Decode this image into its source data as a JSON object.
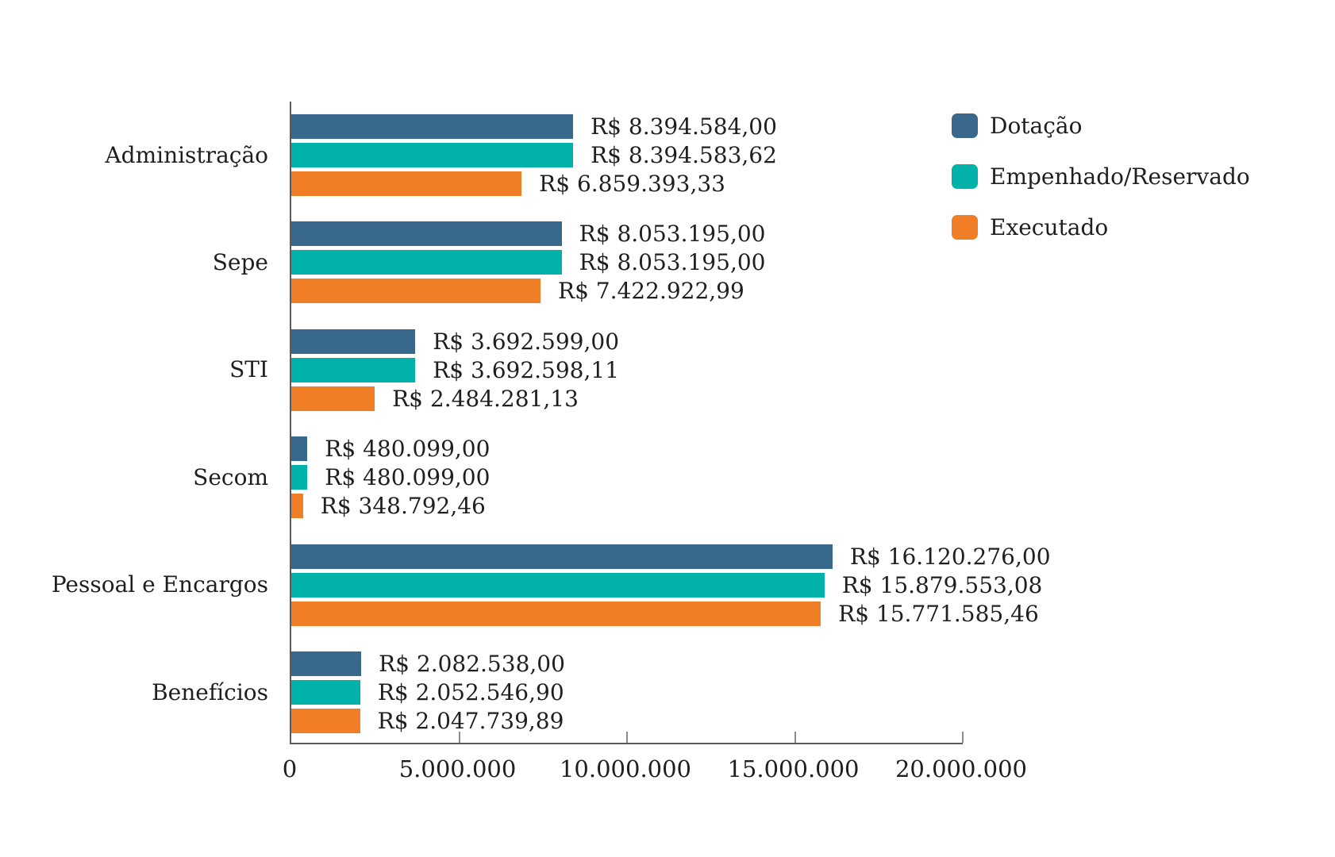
{
  "chart_data": {
    "type": "bar",
    "orientation": "horizontal",
    "title": "",
    "currency_prefix": "R$",
    "categories": [
      "Administração",
      "Sepe",
      "STI",
      "Secom",
      "Pessoal e Encargos",
      "Benefícios"
    ],
    "series": [
      {
        "name": "Dotação",
        "color": "#38698C",
        "values": [
          8394584.0,
          8053195.0,
          3692599.0,
          480099.0,
          16120276.0,
          2082538.0
        ],
        "labels": [
          "R$ 8.394.584,00",
          "R$ 8.053.195,00",
          "R$ 3.692.599,00",
          "R$ 480.099,00",
          "R$ 16.120.276,00",
          "R$ 2.082.538,00"
        ]
      },
      {
        "name": "Empenhado/Reservado",
        "color": "#00B2AA",
        "values": [
          8394583.62,
          8053195.0,
          3692598.11,
          480099.0,
          15879553.08,
          2052546.9
        ],
        "labels": [
          "R$ 8.394.583,62",
          "R$ 8.053.195,00",
          "R$ 3.692.598,11",
          "R$ 480.099,00",
          "R$ 15.879.553,08",
          "R$ 2.052.546,90"
        ]
      },
      {
        "name": "Executado",
        "color": "#F07E26",
        "values": [
          6859393.33,
          7422922.99,
          2484281.13,
          348792.46,
          15771585.46,
          2047739.89
        ],
        "labels": [
          "R$ 6.859.393,33",
          "R$ 7.422.922,99",
          "R$ 2.484.281,13",
          "R$ 348.792,46",
          "R$ 15.771.585,46",
          "R$ 2.047.739,89"
        ]
      }
    ],
    "x_axis": {
      "min": 0,
      "max": 20000000,
      "ticks": [
        0,
        5000000,
        10000000,
        15000000,
        20000000
      ],
      "tick_labels": [
        "0",
        "5.000.000",
        "10.000.000",
        "15.000.000",
        "20.000.000"
      ]
    },
    "legend_position": "top-right",
    "grid": false,
    "colors": {
      "text": "#1f1f1f",
      "axis_line": "#595959",
      "tick_mark": "#8c8c8c",
      "background": "#ffffff"
    }
  }
}
